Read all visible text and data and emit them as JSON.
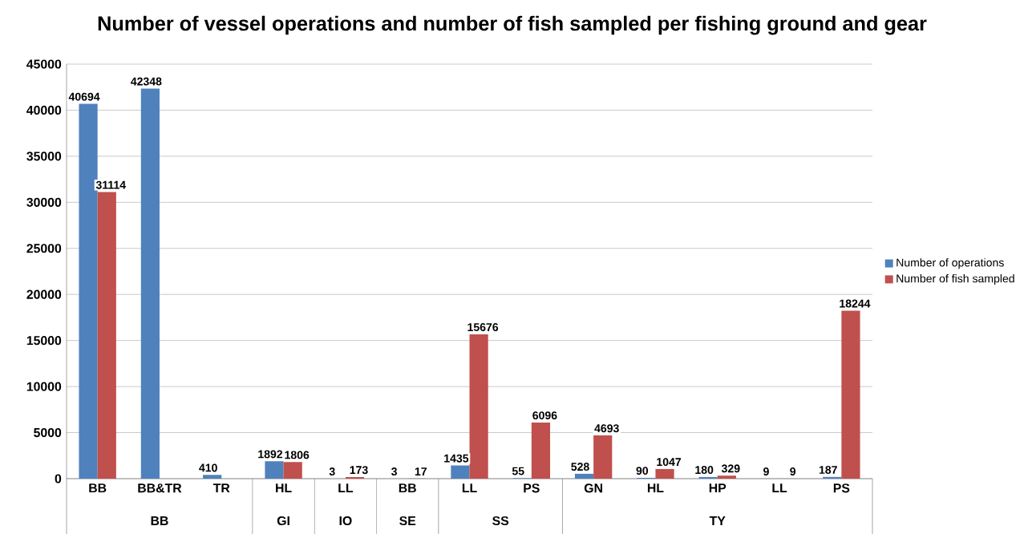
{
  "chart_data": {
    "type": "bar",
    "title": "Number of vessel operations and number of fish sampled per fishing ground and gear",
    "categories": [
      "BB",
      "BB&TR",
      "TR",
      "HL",
      "LL",
      "BB",
      "LL",
      "PS",
      "GN",
      "HL",
      "HP",
      "LL",
      "PS"
    ],
    "series": [
      {
        "name": "Number of operations",
        "color": "#4f81bd",
        "values": [
          40694,
          42348,
          410,
          1892,
          3,
          3,
          1435,
          55,
          528,
          90,
          180,
          9,
          187
        ]
      },
      {
        "name": "Number of fish sampled",
        "color": "#c0504d",
        "values": [
          31114,
          null,
          null,
          1806,
          173,
          17,
          15676,
          6096,
          4693,
          1047,
          329,
          9,
          18244
        ]
      }
    ],
    "ylim": [
      0,
      45000
    ],
    "yticks": [
      0,
      5000,
      10000,
      15000,
      20000,
      25000,
      30000,
      35000,
      40000,
      45000
    ],
    "grid": "y",
    "legend": "right",
    "data_labels": true,
    "annotations": [
      "BB",
      "GI",
      "IO",
      "SE",
      "SS",
      "TY"
    ]
  }
}
